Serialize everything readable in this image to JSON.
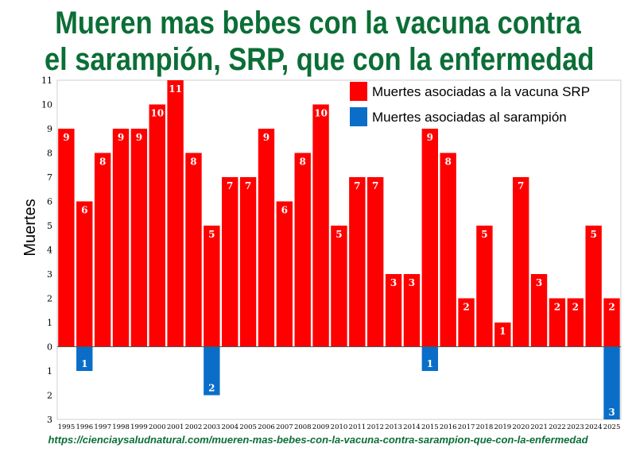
{
  "title_line1": "Mueren mas bebes con la vacuna contra",
  "title_line2": "el sarampión, SRP, que con la enfermedad",
  "source_url": "https://cienciaysaludnatural.com/mueren-mas-bebes-con-la-vacuna-contra-sarampion-que-con-la-enfermedad",
  "chart_data": {
    "type": "bar",
    "title": "Mueren mas bebes con la vacuna contra el sarampión, SRP, que con la enfermedad",
    "ylabel": "Muertes",
    "xlabel": "",
    "ylim": [
      -3,
      11
    ],
    "y_ticks_positive": [
      "1",
      "2",
      "3",
      "4",
      "5",
      "6",
      "7",
      "8",
      "9",
      "10",
      "11"
    ],
    "y_ticks_negative": [
      "0",
      "1",
      "2",
      "3"
    ],
    "legend_position": "top-right",
    "categories": [
      "1995",
      "1996",
      "1997",
      "1998",
      "1999",
      "2000",
      "2001",
      "2002",
      "2003",
      "2004",
      "2005",
      "2006",
      "2007",
      "2008",
      "2009",
      "2010",
      "2011",
      "2012",
      "2013",
      "2014",
      "2015",
      "2016",
      "2017",
      "2018",
      "2019",
      "2020",
      "2021",
      "2022",
      "2023",
      "2024",
      "2025"
    ],
    "series": [
      {
        "name": "Muertes asociadas a la vacuna SRP",
        "color": "#ff0000",
        "direction": "up",
        "values": [
          9,
          6,
          8,
          9,
          9,
          10,
          11,
          8,
          5,
          7,
          7,
          9,
          6,
          8,
          10,
          5,
          7,
          7,
          3,
          3,
          9,
          8,
          2,
          5,
          1,
          7,
          3,
          2,
          2,
          5,
          2
        ]
      },
      {
        "name": "Muertes asociadas al sarampión",
        "color": "#0a6ec8",
        "direction": "down",
        "values": [
          0,
          1,
          0,
          0,
          0,
          0,
          0,
          0,
          2,
          0,
          0,
          0,
          0,
          0,
          0,
          0,
          0,
          0,
          0,
          0,
          1,
          0,
          0,
          0,
          0,
          0,
          0,
          0,
          0,
          0,
          3
        ]
      }
    ]
  }
}
